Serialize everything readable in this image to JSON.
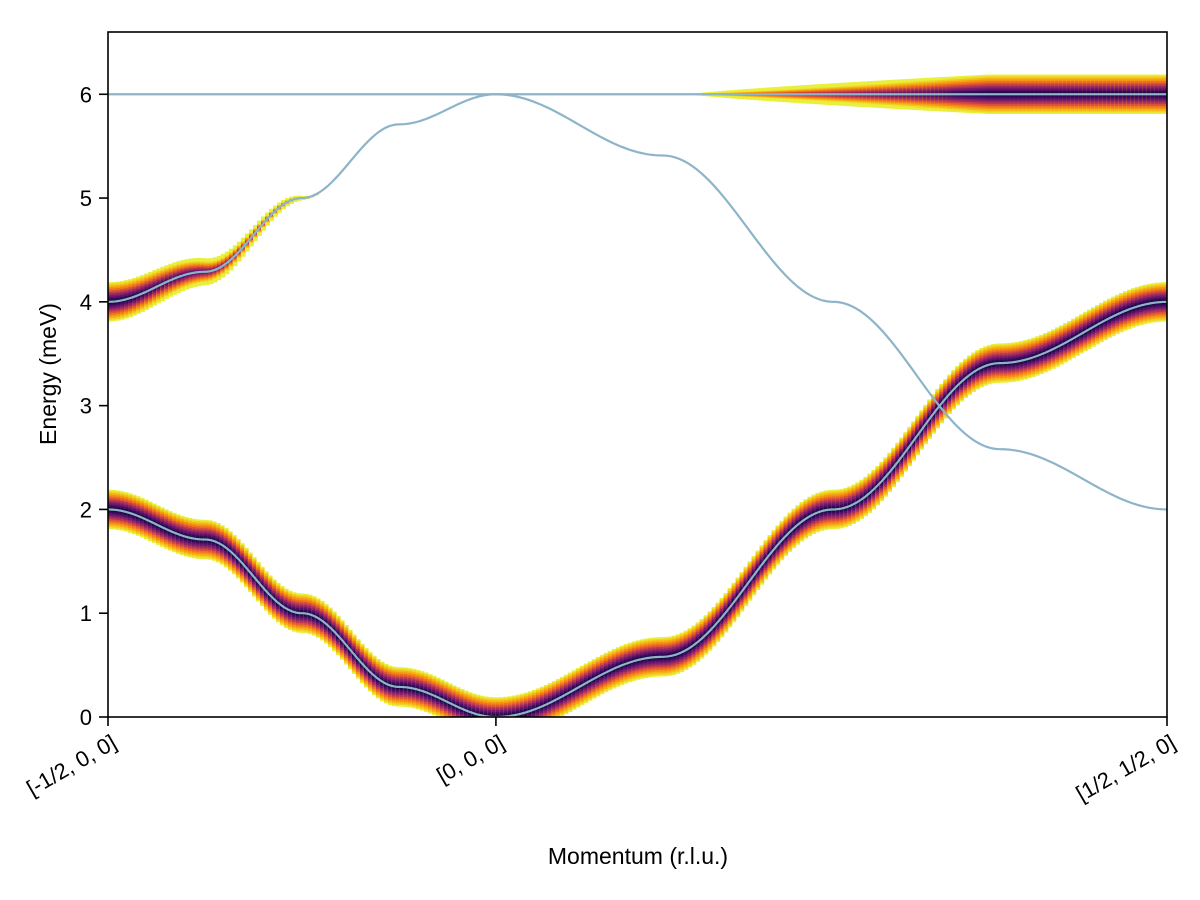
{
  "chart_data": {
    "type": "heatmap",
    "title": "",
    "xlabel": "Momentum (r.l.u.)",
    "ylabel": "Energy (meV)",
    "x_tick_labels": [
      "[-1/2, 0, 0]",
      "[0, 0, 0]",
      "[1/2, 1/2, 0]"
    ],
    "x_tick_positions": [
      0,
      1,
      2.73
    ],
    "xlim": [
      0,
      2.73
    ],
    "ylim": [
      0,
      6.6
    ],
    "y_ticks": [
      0,
      1,
      2,
      3,
      4,
      5,
      6
    ],
    "grid": false,
    "colormap": "inferno (dark at peak, yellow at tails)",
    "line_color": "#8db4c9",
    "dispersion_bands": [
      {
        "segment_1": {
          "x": [
            0,
            0.25,
            0.5,
            0.75,
            1
          ],
          "energy": [
            2.0,
            1.71,
            1.0,
            0.29,
            0.0
          ]
        },
        "segment_2": {
          "x": [
            1,
            1.43,
            1.87,
            2.3,
            2.73
          ],
          "energy": [
            0.0,
            0.58,
            2.0,
            3.41,
            4.0
          ]
        }
      },
      {
        "segment_1": {
          "x": [
            0,
            0.25,
            0.5,
            0.75,
            1
          ],
          "energy": [
            4.0,
            4.29,
            5.0,
            5.71,
            6.0
          ]
        },
        "segment_2": {
          "x": [
            1,
            1.43,
            1.87,
            2.3,
            2.73
          ],
          "energy": [
            6.0,
            5.41,
            4.0,
            2.58,
            2.0
          ]
        }
      },
      {
        "segment_1": {
          "x": [
            0,
            1
          ],
          "energy": [
            6.0,
            6.0
          ]
        },
        "segment_2": {
          "x": [
            1,
            2.73
          ],
          "energy": [
            6.0,
            6.0
          ]
        }
      }
    ],
    "intensity_visible": [
      {
        "band": 0,
        "segment": 1,
        "x_range": [
          0,
          1
        ]
      },
      {
        "band": 0,
        "segment": 2,
        "x_range": [
          1,
          2.73
        ]
      },
      {
        "band": 1,
        "segment": 1,
        "x_range": [
          0,
          0.54
        ]
      },
      {
        "band": 2,
        "segment": 2,
        "x_range": [
          1.5,
          2.73
        ]
      }
    ]
  }
}
